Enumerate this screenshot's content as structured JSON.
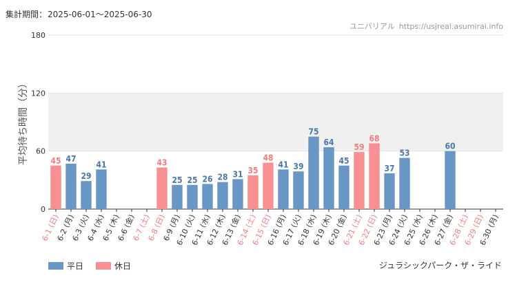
{
  "header": {
    "period_label": "集計期間：",
    "period_value": "2025-06-01～2025-06-30",
    "site_name": "ユニバリアル",
    "site_url": "https://usjreal.asumirai.info"
  },
  "legend": {
    "weekday": "平日",
    "holiday": "休日"
  },
  "attraction_name": "ジュラシックパーク・ザ・ライド",
  "colors": {
    "weekday": "#6a96c5",
    "holiday": "#f78f93",
    "weekday_text": "#4a77a8",
    "holiday_text": "#f07b80",
    "weekday_tick": "#333333",
    "holiday_tick": "#f07b80",
    "band": "#f0f0f0"
  },
  "chart_data": {
    "type": "bar",
    "ylabel": "平均待ち時間（分）",
    "ylim": [
      0,
      180
    ],
    "yticks": [
      "0",
      "60",
      "120",
      "180"
    ],
    "highlight_band": [
      60,
      120
    ],
    "categories": [
      "6-1 (日)",
      "6-2 (月)",
      "6-3 (火)",
      "6-4 (水)",
      "6-5 (木)",
      "6-6 (金)",
      "6-7 (土)",
      "6-8 (日)",
      "6-9 (月)",
      "6-10 (火)",
      "6-11 (水)",
      "6-12 (木)",
      "6-13 (金)",
      "6-14 (土)",
      "6-15 (日)",
      "6-16 (月)",
      "6-17 (火)",
      "6-18 (水)",
      "6-19 (木)",
      "6-20 (金)",
      "6-21 (土)",
      "6-22 (日)",
      "6-23 (月)",
      "6-24 (火)",
      "6-25 (水)",
      "6-26 (木)",
      "6-27 (金)",
      "6-28 (土)",
      "6-29 (日)",
      "6-30 (月)"
    ],
    "day_type": [
      "holiday",
      "weekday",
      "weekday",
      "weekday",
      "weekday",
      "weekday",
      "holiday",
      "holiday",
      "weekday",
      "weekday",
      "weekday",
      "weekday",
      "weekday",
      "holiday",
      "holiday",
      "weekday",
      "weekday",
      "weekday",
      "weekday",
      "weekday",
      "holiday",
      "holiday",
      "weekday",
      "weekday",
      "weekday",
      "weekday",
      "weekday",
      "holiday",
      "holiday",
      "weekday"
    ],
    "values": [
      45,
      47,
      29,
      41,
      null,
      null,
      null,
      43,
      25,
      25,
      26,
      28,
      31,
      35,
      48,
      41,
      39,
      75,
      64,
      45,
      59,
      68,
      37,
      53,
      null,
      null,
      60,
      null,
      null,
      null
    ]
  }
}
